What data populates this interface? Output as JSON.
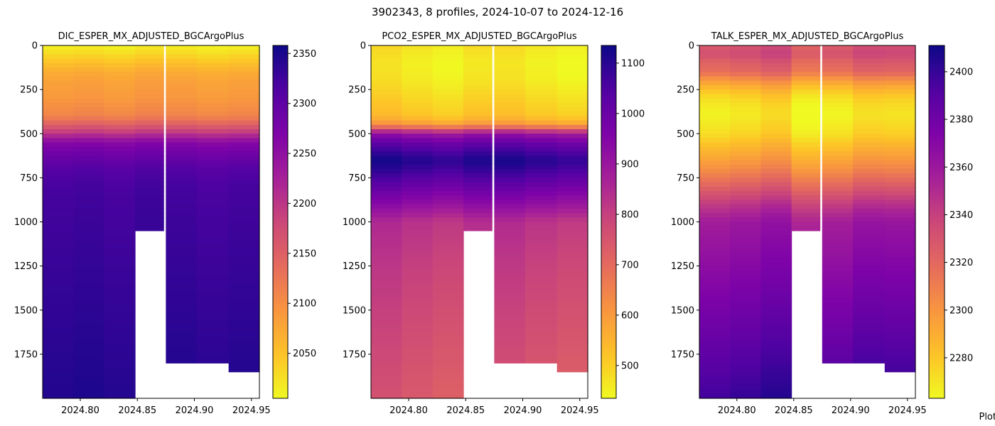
{
  "figure": {
    "title": "3902343, 8 profiles, 2024-10-07 to 2024-12-16",
    "footer_note": "Plot"
  },
  "chart_data": [
    {
      "type": "heatmap",
      "title": "DIC_ESPER_MX_ADJUSTED_BGCArgoPlus",
      "colormap": "plasma",
      "colormap_reversed": true,
      "x_ticks": [
        "2024.80",
        "2024.85",
        "2024.90",
        "2024.95"
      ],
      "x_tick_values": [
        2024.8,
        2024.85,
        2024.9,
        2024.95
      ],
      "xlim": [
        2024.767,
        2024.957
      ],
      "y_ticks": [
        "0",
        "250",
        "500",
        "750",
        "1000",
        "1250",
        "1500",
        "1750"
      ],
      "y_tick_values": [
        0,
        250,
        500,
        750,
        1000,
        1250,
        1500,
        1750
      ],
      "ylim": [
        0,
        2000
      ],
      "y_inverted": true,
      "colorbar_ticks": [
        "2050",
        "2100",
        "2150",
        "2200",
        "2250",
        "2300",
        "2350"
      ],
      "colorbar_tick_values": [
        2050,
        2100,
        2150,
        2200,
        2250,
        2300,
        2350
      ],
      "colorbar_range": [
        2005,
        2358
      ],
      "profile_columns": [
        {
          "x_start": 2024.767,
          "x_end": 2024.794,
          "max_depth": 2000
        },
        {
          "x_start": 2024.794,
          "x_end": 2024.821,
          "max_depth": 2000
        },
        {
          "x_start": 2024.821,
          "x_end": 2024.848,
          "max_depth": 2000
        },
        {
          "x_start": 2024.848,
          "x_end": 2024.873,
          "max_depth": 1050
        },
        {
          "x_start": 2024.875,
          "x_end": 2024.902,
          "max_depth": 1800
        },
        {
          "x_start": 2024.902,
          "x_end": 2024.93,
          "max_depth": 1800
        },
        {
          "x_start": 2024.93,
          "x_end": 2024.957,
          "max_depth": 1850
        }
      ],
      "depth_profile": {
        "depths": [
          0,
          50,
          100,
          150,
          200,
          300,
          400,
          450,
          500,
          550,
          600,
          700,
          800,
          1000,
          1250,
          1500,
          1750,
          2000
        ],
        "values": [
          2010,
          2030,
          2050,
          2070,
          2080,
          2090,
          2110,
          2150,
          2200,
          2260,
          2280,
          2310,
          2320,
          2325,
          2330,
          2335,
          2340,
          2345
        ]
      },
      "column_offsets": [
        0,
        3,
        -2,
        5,
        2,
        -3,
        1
      ]
    },
    {
      "type": "heatmap",
      "title": "PCO2_ESPER_MX_ADJUSTED_BGCArgoPlus",
      "colormap": "plasma",
      "colormap_reversed": true,
      "x_ticks": [
        "2024.80",
        "2024.85",
        "2024.90",
        "2024.95"
      ],
      "x_tick_values": [
        2024.8,
        2024.85,
        2024.9,
        2024.95
      ],
      "xlim": [
        2024.767,
        2024.957
      ],
      "y_ticks": [
        "0",
        "250",
        "500",
        "750",
        "1000",
        "1250",
        "1500",
        "1750"
      ],
      "y_tick_values": [
        0,
        250,
        500,
        750,
        1000,
        1250,
        1500,
        1750
      ],
      "ylim": [
        0,
        2000
      ],
      "y_inverted": true,
      "colorbar_ticks": [
        "500",
        "600",
        "700",
        "800",
        "900",
        "1000",
        "1100"
      ],
      "colorbar_tick_values": [
        500,
        600,
        700,
        800,
        900,
        1000,
        1100
      ],
      "colorbar_range": [
        435,
        1135
      ],
      "profile_columns": [
        {
          "x_start": 2024.767,
          "x_end": 2024.794,
          "max_depth": 2000
        },
        {
          "x_start": 2024.794,
          "x_end": 2024.821,
          "max_depth": 2000
        },
        {
          "x_start": 2024.821,
          "x_end": 2024.848,
          "max_depth": 2000
        },
        {
          "x_start": 2024.848,
          "x_end": 2024.873,
          "max_depth": 1050
        },
        {
          "x_start": 2024.875,
          "x_end": 2024.902,
          "max_depth": 1800
        },
        {
          "x_start": 2024.902,
          "x_end": 2024.93,
          "max_depth": 1800
        },
        {
          "x_start": 2024.93,
          "x_end": 2024.957,
          "max_depth": 1850
        }
      ],
      "depth_profile": {
        "depths": [
          0,
          100,
          200,
          300,
          400,
          450,
          500,
          550,
          600,
          650,
          700,
          800,
          900,
          1000,
          1250,
          1500,
          1750,
          2000
        ],
        "values": [
          470,
          450,
          460,
          490,
          520,
          600,
          900,
          1000,
          1060,
          1110,
          1080,
          1000,
          920,
          830,
          800,
          780,
          760,
          740
        ]
      },
      "column_offsets": [
        20,
        0,
        -15,
        10,
        15,
        -5,
        -20
      ]
    },
    {
      "type": "heatmap",
      "title": "TALK_ESPER_MX_ADJUSTED_BGCArgoPlus",
      "colormap": "plasma",
      "colormap_reversed": true,
      "x_ticks": [
        "2024.80",
        "2024.85",
        "2024.90",
        "2024.95"
      ],
      "x_tick_values": [
        2024.8,
        2024.85,
        2024.9,
        2024.95
      ],
      "xlim": [
        2024.767,
        2024.957
      ],
      "y_ticks": [
        "0",
        "250",
        "500",
        "750",
        "1000",
        "1250",
        "1500",
        "1750"
      ],
      "y_tick_values": [
        0,
        250,
        500,
        750,
        1000,
        1250,
        1500,
        1750
      ],
      "ylim": [
        0,
        2000
      ],
      "y_inverted": true,
      "colorbar_ticks": [
        "2280",
        "2300",
        "2320",
        "2340",
        "2360",
        "2380",
        "2400"
      ],
      "colorbar_tick_values": [
        2280,
        2300,
        2320,
        2340,
        2360,
        2380,
        2400
      ],
      "colorbar_range": [
        2263,
        2411
      ],
      "profile_columns": [
        {
          "x_start": 2024.767,
          "x_end": 2024.794,
          "max_depth": 2000
        },
        {
          "x_start": 2024.794,
          "x_end": 2024.821,
          "max_depth": 2000
        },
        {
          "x_start": 2024.821,
          "x_end": 2024.848,
          "max_depth": 2000
        },
        {
          "x_start": 2024.848,
          "x_end": 2024.873,
          "max_depth": 1050
        },
        {
          "x_start": 2024.875,
          "x_end": 2024.902,
          "max_depth": 1800
        },
        {
          "x_start": 2024.902,
          "x_end": 2024.93,
          "max_depth": 1800
        },
        {
          "x_start": 2024.93,
          "x_end": 2024.957,
          "max_depth": 1850
        }
      ],
      "depth_profile": {
        "depths": [
          0,
          50,
          100,
          150,
          200,
          250,
          300,
          350,
          400,
          500,
          600,
          700,
          800,
          900,
          1000,
          1250,
          1500,
          1750,
          2000
        ],
        "values": [
          2330,
          2335,
          2325,
          2320,
          2300,
          2285,
          2275,
          2270,
          2268,
          2275,
          2290,
          2305,
          2325,
          2345,
          2360,
          2370,
          2380,
          2390,
          2400
        ]
      },
      "column_offsets": [
        -3,
        0,
        5,
        -8,
        -4,
        3,
        2
      ]
    }
  ]
}
